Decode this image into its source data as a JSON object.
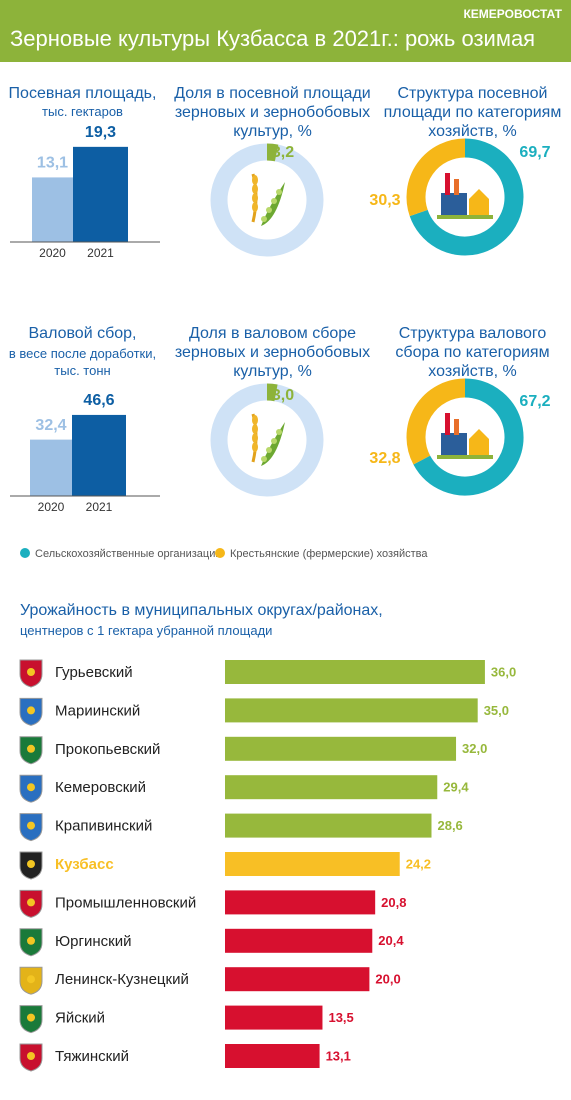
{
  "header": {
    "source": "КЕМЕРОВОСТАТ",
    "title": "Зерновые культуры Кузбасса в 2021г.: рожь озимая"
  },
  "chart_data": [
    {
      "type": "bar",
      "title": "Посевная площадь,",
      "subtitle": "тыс. гектаров",
      "categories": [
        "2020",
        "2021"
      ],
      "values": [
        13.1,
        19.3
      ],
      "value_labels": [
        "13,1",
        "19,3"
      ],
      "colors": [
        "#9dc0e4",
        "#0d5ea3"
      ]
    },
    {
      "type": "donut",
      "title": "Доля в посевной площади зерновых и зернобобовых культур, %",
      "values": [
        3.2
      ],
      "value_labels": [
        "3,2"
      ],
      "colors": [
        "#8db33a"
      ],
      "track_color": "#cfe2f6"
    },
    {
      "type": "donut",
      "title": "Структура посевной площади по категориям хозяйств, %",
      "categories": [
        "Сельскохозяйственные организации",
        "Крестьянские (фермерские) хозяйства"
      ],
      "values": [
        69.7,
        30.3
      ],
      "value_labels": [
        "69,7",
        "30,3"
      ],
      "colors": [
        "#1bafbf",
        "#f6b718"
      ]
    },
    {
      "type": "bar",
      "title": "Валовой сбор,",
      "subtitle": "в весе после доработки, тыс. тонн",
      "categories": [
        "2020",
        "2021"
      ],
      "values": [
        32.4,
        46.6
      ],
      "value_labels": [
        "32,4",
        "46,6"
      ],
      "colors": [
        "#9dc0e4",
        "#0d5ea3"
      ]
    },
    {
      "type": "donut",
      "title": "Доля в валовом сборе зерновых и зернобобовых культур, %",
      "values": [
        3.0
      ],
      "value_labels": [
        "3,0"
      ],
      "colors": [
        "#8db33a"
      ],
      "track_color": "#cfe2f6"
    },
    {
      "type": "donut",
      "title": "Структура валового сбора по категориям хозяйств, %",
      "values": [
        67.2,
        32.8
      ],
      "value_labels": [
        "67,2",
        "32,8"
      ],
      "colors": [
        "#1bafbf",
        "#f6b718"
      ]
    },
    {
      "type": "hbar",
      "title": "Урожайность в муниципальных округах/районах,",
      "subtitle": "центнеров с 1 гектара убранной площади",
      "categories": [
        "Гурьевский",
        "Мариинский",
        "Прокопьевский",
        "Кемеровский",
        "Крапивинский",
        "Кузбасс",
        "Промышленновский",
        "Юргинский",
        "Ленинск-Кузнецкий",
        "Яйский",
        "Тяжинский"
      ],
      "values": [
        36.0,
        35.0,
        32.0,
        29.4,
        28.6,
        24.2,
        20.8,
        20.4,
        20.0,
        13.5,
        13.1
      ],
      "value_labels": [
        "36,0",
        "35,0",
        "32,0",
        "29,4",
        "28,6",
        "24,2",
        "20,8",
        "20,4",
        "20,0",
        "13,5",
        "13,1"
      ],
      "colors": [
        "#97b83c",
        "#97b83c",
        "#97b83c",
        "#97b83c",
        "#97b83c",
        "#f8bf25",
        "#d7102f",
        "#d7102f",
        "#d7102f",
        "#d7102f",
        "#d7102f"
      ],
      "highlight": 5
    }
  ]
}
